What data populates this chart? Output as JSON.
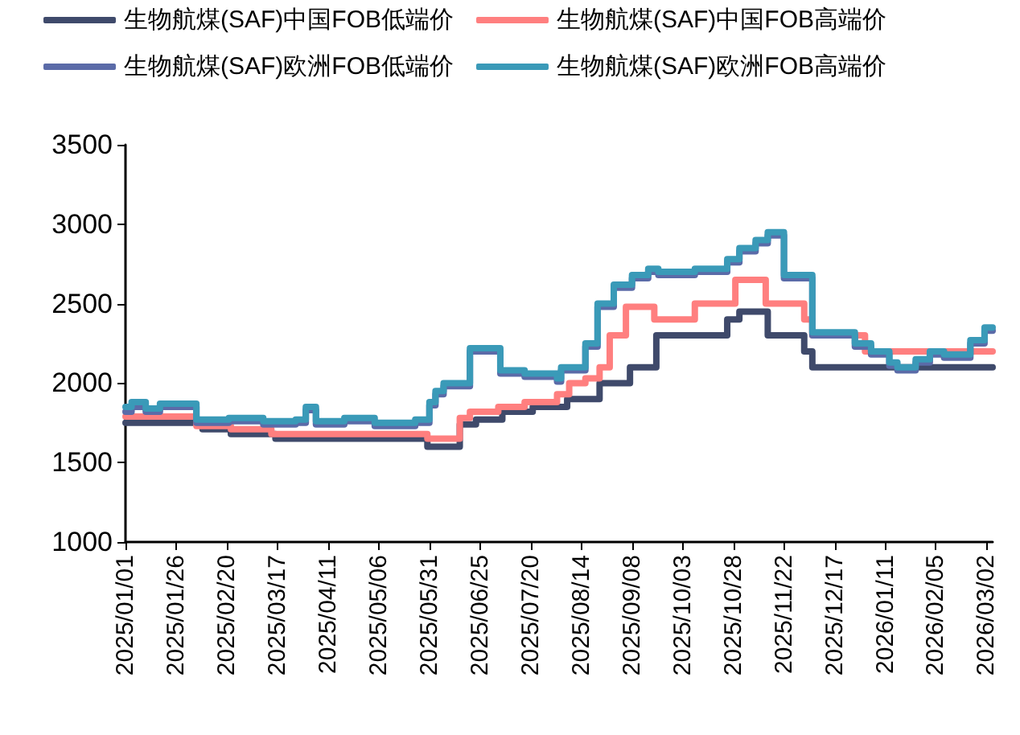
{
  "chart_data": {
    "type": "step",
    "legend": "top",
    "grid": false,
    "marker": "none",
    "line_style": "solid",
    "xlim": [
      "2025-01-01",
      "2026-03-05"
    ],
    "xticks": [
      {
        "value": "2025-01-01",
        "label": "2025/01/01"
      },
      {
        "value": "2025-01-26",
        "label": "2025/01/26"
      },
      {
        "value": "2025-02-20",
        "label": "2025/02/20"
      },
      {
        "value": "2025-03-17",
        "label": "2025/03/17"
      },
      {
        "value": "2025-04-11",
        "label": "2025/04/11"
      },
      {
        "value": "2025-05-06",
        "label": "2025/05/06"
      },
      {
        "value": "2025-05-31",
        "label": "2025/05/31"
      },
      {
        "value": "2025-06-25",
        "label": "2025/06/25"
      },
      {
        "value": "2025-07-20",
        "label": "2025/07/20"
      },
      {
        "value": "2025-08-14",
        "label": "2025/08/14"
      },
      {
        "value": "2025-09-08",
        "label": "2025/09/08"
      },
      {
        "value": "2025-10-03",
        "label": "2025/10/03"
      },
      {
        "value": "2025-10-28",
        "label": "2025/10/28"
      },
      {
        "value": "2025-11-22",
        "label": "2025/11/22"
      },
      {
        "value": "2025-12-17",
        "label": "2025/12/17"
      },
      {
        "value": "2026-01-11",
        "label": "2026/01/11"
      },
      {
        "value": "2026-02-05",
        "label": "2026/02/05"
      },
      {
        "value": "2026-03-02",
        "label": "2026/03/02"
      }
    ],
    "ylim": [
      1000,
      3500
    ],
    "yticks": [
      1000,
      1500,
      2000,
      2500,
      3000,
      3500
    ],
    "series": [
      {
        "name": "生物航煤(SAF)中国FOB低端价",
        "color": "#3f4a6b",
        "x": [
          "2025-01-01",
          "2025-02-08",
          "2025-02-22",
          "2025-03-16",
          "2025-05-30",
          "2025-06-15",
          "2025-06-23",
          "2025-07-06",
          "2025-07-21",
          "2025-08-07",
          "2025-08-23",
          "2025-09-07",
          "2025-09-20",
          "2025-10-25",
          "2025-10-31",
          "2025-11-14",
          "2025-12-02",
          "2025-12-06",
          "2026-03-05"
        ],
        "values": [
          1750,
          1710,
          1680,
          1650,
          1600,
          1740,
          1770,
          1820,
          1850,
          1900,
          2000,
          2100,
          2300,
          2400,
          2450,
          2300,
          2200,
          2100,
          2100
        ]
      },
      {
        "name": "生物航煤(SAF)中国FOB高端价",
        "color": "#ff7f7f",
        "x": [
          "2025-01-01",
          "2025-02-05",
          "2025-02-22",
          "2025-03-14",
          "2025-05-30",
          "2025-06-15",
          "2025-06-20",
          "2025-07-04",
          "2025-07-17",
          "2025-08-02",
          "2025-08-08",
          "2025-08-16",
          "2025-08-23",
          "2025-08-28",
          "2025-09-05",
          "2025-09-19",
          "2025-10-09",
          "2025-10-29",
          "2025-11-13",
          "2025-12-02",
          "2025-12-06",
          "2026-01-01",
          "2026-03-05"
        ],
        "values": [
          1790,
          1730,
          1710,
          1680,
          1650,
          1780,
          1820,
          1850,
          1880,
          1930,
          2000,
          2030,
          2100,
          2300,
          2480,
          2400,
          2500,
          2650,
          2500,
          2400,
          2300,
          2200,
          2200
        ]
      },
      {
        "name": "生物航煤(SAF)欧洲FOB低端价",
        "color": "#5b6ba8",
        "x": [
          "2025-01-01",
          "2025-01-04",
          "2025-01-11",
          "2025-01-18",
          "2025-02-05",
          "2025-02-21",
          "2025-03-10",
          "2025-03-26",
          "2025-03-31",
          "2025-04-05",
          "2025-04-19",
          "2025-05-04",
          "2025-05-24",
          "2025-05-31",
          "2025-06-03",
          "2025-06-07",
          "2025-06-20",
          "2025-07-05",
          "2025-07-17",
          "2025-08-02",
          "2025-08-04",
          "2025-08-16",
          "2025-08-22",
          "2025-08-30",
          "2025-09-08",
          "2025-09-16",
          "2025-09-21",
          "2025-10-09",
          "2025-10-25",
          "2025-10-31",
          "2025-11-08",
          "2025-11-14",
          "2025-11-22",
          "2025-12-06",
          "2025-12-27",
          "2026-01-04",
          "2026-01-13",
          "2026-01-17",
          "2026-01-26",
          "2026-02-02",
          "2026-02-09",
          "2026-02-22",
          "2026-03-01",
          "2026-03-05"
        ],
        "values": [
          1820,
          1850,
          1820,
          1850,
          1750,
          1760,
          1740,
          1750,
          1830,
          1740,
          1760,
          1730,
          1750,
          1860,
          1930,
          1980,
          2200,
          2060,
          2040,
          2010,
          2080,
          2230,
          2480,
          2600,
          2660,
          2700,
          2680,
          2700,
          2760,
          2830,
          2880,
          2930,
          2660,
          2300,
          2230,
          2180,
          2110,
          2080,
          2130,
          2180,
          2160,
          2250,
          2330,
          2330
        ]
      },
      {
        "name": "生物航煤(SAF)欧洲FOB高端价",
        "color": "#3a9ab8",
        "x": [
          "2025-01-01",
          "2025-01-04",
          "2025-01-11",
          "2025-01-18",
          "2025-02-05",
          "2025-02-21",
          "2025-03-10",
          "2025-03-26",
          "2025-03-31",
          "2025-04-05",
          "2025-04-19",
          "2025-05-04",
          "2025-05-24",
          "2025-05-31",
          "2025-06-03",
          "2025-06-07",
          "2025-06-20",
          "2025-07-05",
          "2025-07-17",
          "2025-08-02",
          "2025-08-04",
          "2025-08-16",
          "2025-08-22",
          "2025-08-30",
          "2025-09-08",
          "2025-09-16",
          "2025-09-21",
          "2025-10-09",
          "2025-10-25",
          "2025-10-31",
          "2025-11-08",
          "2025-11-14",
          "2025-11-22",
          "2025-12-06",
          "2025-12-27",
          "2026-01-04",
          "2026-01-13",
          "2026-01-17",
          "2026-01-26",
          "2026-02-02",
          "2026-02-09",
          "2026-02-22",
          "2026-03-01",
          "2026-03-05"
        ],
        "values": [
          1850,
          1880,
          1840,
          1870,
          1770,
          1780,
          1760,
          1770,
          1850,
          1760,
          1780,
          1750,
          1770,
          1880,
          1950,
          2000,
          2220,
          2080,
          2060,
          2030,
          2100,
          2250,
          2500,
          2620,
          2680,
          2720,
          2700,
          2720,
          2780,
          2850,
          2900,
          2950,
          2680,
          2320,
          2250,
          2200,
          2130,
          2100,
          2150,
          2200,
          2180,
          2270,
          2350,
          2350
        ]
      }
    ]
  }
}
